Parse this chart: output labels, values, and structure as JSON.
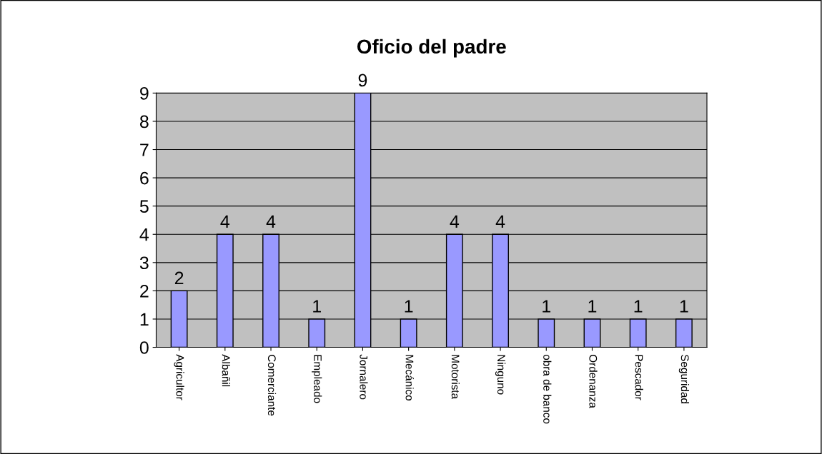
{
  "chart_data": {
    "type": "bar",
    "title": "Oficio del padre",
    "categories": [
      "Agricultor",
      "Albañil",
      "Comerciante",
      "Empleado",
      "Jornalero",
      "Mecánico",
      "Motorista",
      "Ninguno",
      "obra de banco",
      "Ordenanza",
      "Pescador",
      "Seguridad"
    ],
    "values": [
      2,
      4,
      4,
      1,
      9,
      1,
      4,
      4,
      1,
      1,
      1,
      1
    ],
    "color": "#9999ff",
    "ylim": [
      0,
      9
    ],
    "yticks": [
      0,
      1,
      2,
      3,
      4,
      5,
      6,
      7,
      8,
      9
    ],
    "grid": "y",
    "data_labels": true,
    "legend": false
  }
}
